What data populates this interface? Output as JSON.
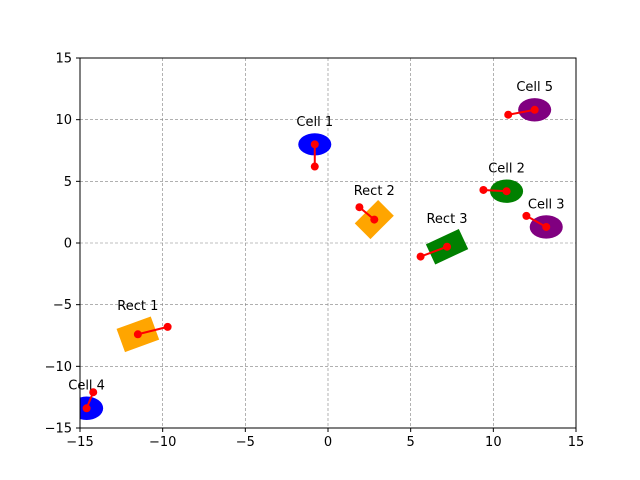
{
  "chart_data": {
    "type": "scatter",
    "title": "",
    "xlabel": "",
    "ylabel": "",
    "xlim": [
      -15,
      15
    ],
    "ylim": [
      -15,
      15
    ],
    "xticks": [
      -15,
      -10,
      -5,
      0,
      5,
      10,
      15
    ],
    "yticks": [
      -15,
      -10,
      -5,
      0,
      5,
      10,
      15
    ],
    "xtick_labels": [
      "−15",
      "−10",
      "−5",
      "0",
      "5",
      "10",
      "15"
    ],
    "ytick_labels": [
      "−15",
      "−10",
      "−5",
      "0",
      "5",
      "10",
      "15"
    ],
    "grid": true,
    "grid_style": "dashed",
    "colors": {
      "blue": "#0000ff",
      "green": "#008000",
      "purple": "#800080",
      "orange": "#ffa500",
      "marker": "#ff0000",
      "grid": "#808080"
    },
    "cells": [
      {
        "label": "Cell 1",
        "center": [
          -0.8,
          8.0
        ],
        "axes": [
          1.0,
          0.9
        ],
        "angle": 0,
        "color": "blue",
        "vector_end": [
          -0.8,
          6.2
        ]
      },
      {
        "label": "Cell 2",
        "center": [
          10.8,
          4.2
        ],
        "axes": [
          1.0,
          0.95
        ],
        "angle": 0,
        "color": "green",
        "vector_end": [
          9.4,
          4.3
        ]
      },
      {
        "label": "Cell 3",
        "center": [
          13.2,
          1.3
        ],
        "axes": [
          1.0,
          0.95
        ],
        "angle": 0,
        "color": "purple",
        "vector_end": [
          12.0,
          2.2
        ]
      },
      {
        "label": "Cell 4",
        "center": [
          -14.6,
          -13.4
        ],
        "axes": [
          1.0,
          0.95
        ],
        "angle": 0,
        "color": "blue",
        "vector_end": [
          -14.2,
          -12.1
        ]
      },
      {
        "label": "Cell 5",
        "center": [
          12.5,
          10.8
        ],
        "axes": [
          1.0,
          0.95
        ],
        "angle": 0,
        "color": "purple",
        "vector_end": [
          10.9,
          10.4
        ]
      }
    ],
    "rects": [
      {
        "label": "Rect 1",
        "center": [
          -11.5,
          -7.4
        ],
        "size": [
          2.2,
          2.0
        ],
        "angle": 20,
        "color": "orange",
        "vector_end": [
          -9.7,
          -6.8
        ]
      },
      {
        "label": "Rect 2",
        "center": [
          2.8,
          1.9
        ],
        "size": [
          2.0,
          1.8
        ],
        "angle": 45,
        "color": "orange",
        "vector_end": [
          1.9,
          2.9
        ]
      },
      {
        "label": "Rect 3",
        "center": [
          7.2,
          -0.3
        ],
        "size": [
          2.2,
          1.8
        ],
        "angle": 25,
        "color": "green",
        "vector_end": [
          5.6,
          -1.1
        ]
      }
    ]
  }
}
